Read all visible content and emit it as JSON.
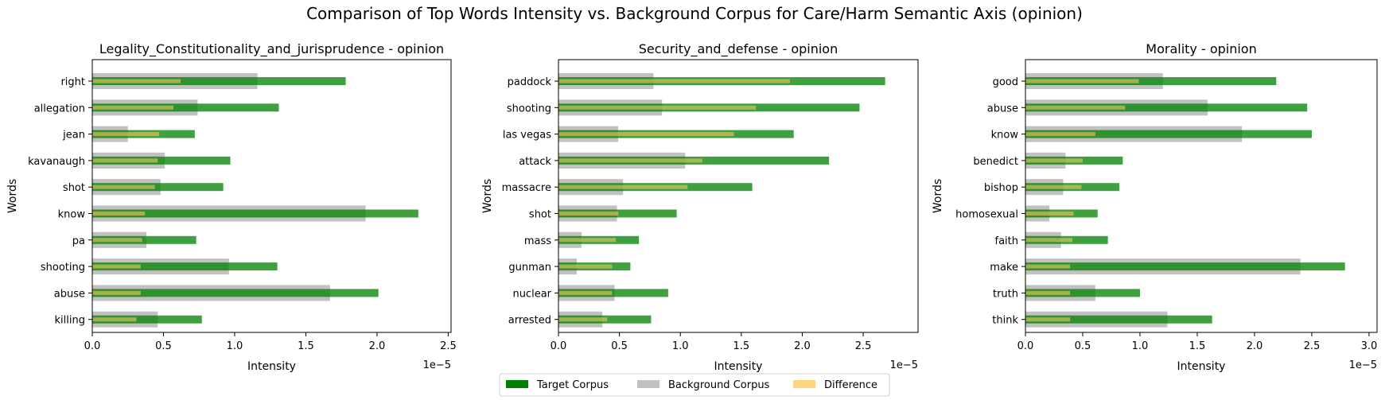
{
  "chart_data": {
    "type": "bar",
    "title": "Comparison of Top Words Intensity vs. Background Corpus for Care/Harm Semantic Axis (opinion)",
    "legend": {
      "placement": "bottom-center",
      "entries": [
        {
          "name": "Target Corpus",
          "color": "#008000"
        },
        {
          "name": "Background Corpus",
          "color": "#bebebe"
        },
        {
          "name": "Difference",
          "color": "#ffcc66"
        }
      ]
    },
    "panels": [
      {
        "title": "Legality_Constitutionality_and_jurisprudence - opinion",
        "xlabel": "Intensity",
        "ylabel": "Words",
        "x_scale_label": "1e−5",
        "xlim": [
          0,
          2.52
        ],
        "xticks": [
          "0.0",
          "0.5",
          "1.0",
          "1.5",
          "2.0",
          "2.5"
        ],
        "xtick_values": [
          0,
          0.5,
          1.0,
          1.5,
          2.0,
          2.5
        ],
        "words": [
          "right",
          "allegation",
          "jean",
          "kavanaugh",
          "shot",
          "know",
          "pa",
          "shooting",
          "abuse",
          "killing"
        ],
        "target": [
          1.78,
          1.31,
          0.72,
          0.97,
          0.92,
          2.29,
          0.73,
          1.3,
          2.01,
          0.77
        ],
        "background": [
          1.16,
          0.74,
          0.25,
          0.51,
          0.48,
          1.92,
          0.38,
          0.96,
          1.67,
          0.46
        ],
        "difference": [
          0.62,
          0.57,
          0.47,
          0.46,
          0.44,
          0.37,
          0.35,
          0.34,
          0.34,
          0.31
        ]
      },
      {
        "title": "Security_and_defense - opinion",
        "xlabel": "Intensity",
        "ylabel": "Words",
        "x_scale_label": "1e−5",
        "xlim": [
          0,
          2.95
        ],
        "xticks": [
          "0.0",
          "0.5",
          "1.0",
          "1.5",
          "2.0",
          "2.5"
        ],
        "xtick_values": [
          0,
          0.5,
          1.0,
          1.5,
          2.0,
          2.5
        ],
        "words": [
          "paddock",
          "shooting",
          "las vegas",
          "attack",
          "massacre",
          "shot",
          "mass",
          "gunman",
          "nuclear",
          "arrested"
        ],
        "target": [
          2.68,
          2.47,
          1.93,
          2.22,
          1.59,
          0.97,
          0.66,
          0.59,
          0.9,
          0.76
        ],
        "background": [
          0.78,
          0.85,
          0.49,
          1.04,
          0.53,
          0.48,
          0.19,
          0.15,
          0.46,
          0.36
        ],
        "difference": [
          1.9,
          1.62,
          1.44,
          1.18,
          1.06,
          0.49,
          0.47,
          0.44,
          0.44,
          0.4
        ]
      },
      {
        "title": "Morality - opinion",
        "xlabel": "Intensity",
        "ylabel": "Words",
        "x_scale_label": "1e−5",
        "xlim": [
          0,
          3.07
        ],
        "xticks": [
          "0.0",
          "0.5",
          "1.0",
          "1.5",
          "2.0",
          "2.5",
          "3.0"
        ],
        "xtick_values": [
          0,
          0.5,
          1.0,
          1.5,
          2.0,
          2.5,
          3.0
        ],
        "words": [
          "good",
          "abuse",
          "know",
          "benedict",
          "bishop",
          "homosexual",
          "faith",
          "make",
          "truth",
          "think"
        ],
        "target": [
          2.19,
          2.46,
          2.5,
          0.85,
          0.82,
          0.63,
          0.72,
          2.79,
          1.0,
          1.63
        ],
        "background": [
          1.2,
          1.59,
          1.89,
          0.35,
          0.33,
          0.21,
          0.31,
          2.4,
          0.61,
          1.24
        ],
        "difference": [
          0.99,
          0.87,
          0.61,
          0.5,
          0.49,
          0.42,
          0.41,
          0.39,
          0.39,
          0.39
        ]
      }
    ]
  }
}
